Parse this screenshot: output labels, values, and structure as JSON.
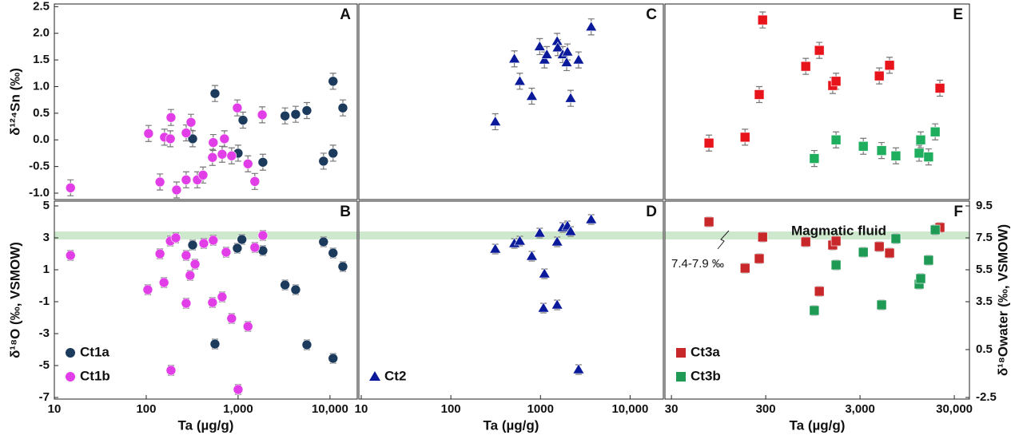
{
  "chart_data": [
    {
      "type": "scatter",
      "label": "A",
      "xscale": "log",
      "xlim": [
        10,
        19800
      ],
      "ylim": [
        -1.12,
        2.55
      ],
      "yticks": [
        2.5,
        {
          "value": 2,
          "label": "2.0"
        },
        1.5,
        {
          "value": 1,
          "label": "1.0"
        },
        0.5,
        {
          "value": 0,
          "label": "0.0"
        },
        -0.5,
        {
          "value": -1,
          "label": "-1.0"
        }
      ],
      "ylabel": "δ¹²⁴Sn (‰)",
      "series": [
        {
          "color": "#1b3a5c",
          "marker": "circle",
          "error": 0.15,
          "x": [
            560,
            320,
            1000,
            1130,
            1860,
            3240,
            4230,
            5600,
            8500,
            10800,
            10800,
            13800
          ],
          "values": [
            0.87,
            0.02,
            -0.25,
            0.37,
            -0.42,
            0.45,
            0.48,
            0.55,
            -0.4,
            1.1,
            -0.25,
            0.6
          ]
        },
        {
          "color": "#e23ee8",
          "marker": "circle",
          "error": 0.15,
          "x": [
            15,
            106,
            141,
            158,
            186,
            183,
            214,
            272,
            307,
            272,
            360,
            415,
            526,
            536,
            670,
            710,
            850,
            980,
            1280,
            1520,
            1830
          ],
          "values": [
            -0.9,
            0.12,
            -0.79,
            0.05,
            0.42,
            0.02,
            -0.94,
            0.13,
            0.33,
            -0.75,
            -0.75,
            -0.66,
            -0.33,
            -0.05,
            -0.27,
            0.02,
            -0.3,
            0.6,
            -0.45,
            -0.78,
            0.47
          ]
        }
      ]
    },
    {
      "type": "scatter",
      "label": "B",
      "xscale": "log",
      "xlim": [
        10,
        19800
      ],
      "ylim": [
        -7.1,
        5.3
      ],
      "xticks": [
        10,
        100,
        {
          "value": 1000,
          "label": "1,000"
        },
        {
          "value": 10000,
          "label": "10,000"
        }
      ],
      "yticks": [
        5,
        3,
        1,
        -1,
        -3,
        -5,
        -7
      ],
      "xlabel": "Ta (µg/g)",
      "ylabel": "δ¹⁸O (‰, VSMOW)",
      "band": [
        2.9,
        3.4
      ],
      "band_color": "#cde8cc",
      "legend": "bottom-left",
      "series": [
        {
          "name": "Ct1a",
          "color": "#1b3a5c",
          "marker": "circle",
          "error": 0.3,
          "x": [
            320,
            560,
            980,
            1100,
            1860,
            3240,
            4230,
            5600,
            8500,
            10800,
            10800,
            13800
          ],
          "values": [
            2.55,
            -3.65,
            2.35,
            2.9,
            2.2,
            0.05,
            -0.25,
            -3.7,
            2.75,
            2.05,
            -4.55,
            1.2
          ]
        },
        {
          "name": "Ct1b",
          "color": "#e23ee8",
          "marker": "circle",
          "error": 0.3,
          "x": [
            15,
            104,
            141,
            156,
            183,
            210,
            272,
            272,
            300,
            340,
            423,
            536,
            526,
            670,
            740,
            850,
            1280,
            1520,
            1860,
            186,
            1000
          ],
          "values": [
            1.9,
            -0.25,
            2.0,
            0.2,
            2.8,
            3.0,
            1.9,
            -1.1,
            0.65,
            1.35,
            2.65,
            2.85,
            -1.05,
            -0.7,
            2.1,
            -2.05,
            -2.55,
            2.4,
            3.15,
            -5.3,
            -6.5
          ]
        }
      ]
    },
    {
      "type": "scatter",
      "label": "C",
      "xscale": "log",
      "xlim": [
        9.4,
        23500
      ],
      "ylim": [
        -1.12,
        2.55
      ],
      "series": [
        {
          "color": "#0a1a9a",
          "marker": "triangle",
          "error": 0.15,
          "x": [
            313,
            511,
            588,
            800,
            980,
            1107,
            1177,
            1535,
            1560,
            1770,
            1960,
            2000,
            2170,
            2660,
            3680
          ],
          "values": [
            0.34,
            1.52,
            1.1,
            0.82,
            1.75,
            1.5,
            1.6,
            1.85,
            1.73,
            1.6,
            1.45,
            1.65,
            0.78,
            1.5,
            2.12
          ]
        }
      ]
    },
    {
      "type": "scatter",
      "label": "D",
      "xscale": "log",
      "xlim": [
        9.4,
        23500
      ],
      "ylim": [
        -7.1,
        5.3
      ],
      "xticks": [
        10,
        100,
        1000,
        {
          "value": 10000,
          "label": "10,000"
        }
      ],
      "xlabel": "Ta (µg/g)",
      "band": [
        2.9,
        3.4
      ],
      "band_color": "#cde8cc",
      "legend": "bottom-left",
      "series": [
        {
          "name": "Ct2",
          "color": "#0a1a9a",
          "marker": "triangle",
          "error": 0.3,
          "x": [
            313,
            511,
            588,
            800,
            980,
            1107,
            1080,
            1535,
            1535,
            1770,
            2000,
            2170,
            3680,
            2660
          ],
          "values": [
            2.3,
            2.65,
            2.8,
            1.85,
            3.3,
            0.75,
            -1.4,
            -1.2,
            2.75,
            3.65,
            3.75,
            3.4,
            4.15,
            -5.25
          ]
        }
      ]
    },
    {
      "type": "scatter",
      "label": "E",
      "xscale": "log",
      "xlim": [
        25.6,
        43400
      ],
      "ylim": [
        -1.12,
        2.55
      ],
      "series": [
        {
          "color": "#e8141c",
          "marker": "square",
          "error": 0.15,
          "x": [
            75,
            181,
            278,
            256,
            797,
            1110,
            1540,
            1670,
            4800,
            6170,
            21100
          ],
          "values": [
            -0.06,
            0.05,
            2.25,
            0.85,
            1.38,
            1.68,
            1.02,
            1.1,
            1.2,
            1.4,
            0.97
          ]
        },
        {
          "color": "#1fae5e",
          "marker": "square",
          "error": 0.15,
          "x": [
            982,
            1670,
            3250,
            5080,
            7200,
            12700,
            13200,
            16000,
            18800
          ],
          "values": [
            -0.35,
            0.0,
            -0.12,
            -0.2,
            -0.3,
            -0.25,
            0.0,
            -0.32,
            0.15
          ]
        }
      ]
    },
    {
      "type": "scatter",
      "label": "F",
      "xscale": "log",
      "xlim": [
        25.6,
        43400
      ],
      "y2lim": [
        -2.6,
        9.8
      ],
      "xticks": [
        30,
        300,
        {
          "value": 3000,
          "label": "3,000"
        },
        {
          "value": 30000,
          "label": "30,000"
        }
      ],
      "y2ticks": [
        9.5,
        7.5,
        5.5,
        3.5,
        0.5,
        -2.5
      ],
      "xlabel": "Ta (µg/g)",
      "y2label": "δ¹⁸Owater (‰, VSMOW)",
      "band": [
        7.4,
        7.9
      ],
      "band_axis": "y2",
      "band_color": "#cde8cc",
      "legend": "bottom-left",
      "annotations": [
        "Magmatic fluid",
        "7.4-7.9 ‰"
      ],
      "series": [
        {
          "name": "Ct3a",
          "color": "#c8282a",
          "marker": "square",
          "error": 0.3,
          "axis": "y2",
          "x": [
            75,
            181,
            278,
            256,
            797,
            1110,
            1540,
            1670,
            4800,
            6170,
            21100
          ],
          "values": [
            8.5,
            5.6,
            7.55,
            6.2,
            7.25,
            4.15,
            7.05,
            7.3,
            6.95,
            6.55,
            8.15
          ]
        },
        {
          "name": "Ct3b",
          "color": "#1f9a55",
          "marker": "square",
          "error": 0.3,
          "axis": "y2",
          "x": [
            982,
            1670,
            3250,
            5080,
            7200,
            12700,
            13200,
            16000,
            18800
          ],
          "values": [
            2.95,
            5.8,
            6.6,
            3.3,
            7.45,
            4.6,
            4.95,
            6.1,
            8.0
          ]
        }
      ]
    }
  ]
}
